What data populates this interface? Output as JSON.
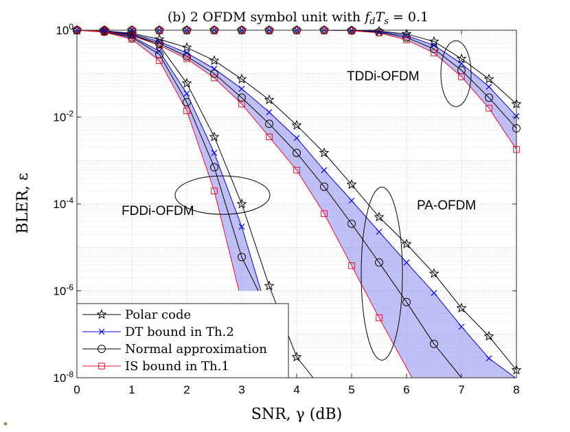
{
  "chart_data": {
    "type": "line",
    "title": "(b) 2 OFDM symbol unit with f_dT_s = 0.1",
    "title_parts": [
      "(b) 2 OFDM symbol unit with ",
      "f",
      "d",
      "T",
      "s",
      " = 0.1"
    ],
    "xlabel": "SNR, γ (dB)",
    "ylabel": "BLER, ε",
    "xlim": [
      0,
      8
    ],
    "ylim": [
      1e-08,
      1
    ],
    "yscale": "log",
    "grid": true,
    "minor_grid": true,
    "x_ticks": [
      0,
      1,
      2,
      3,
      4,
      5,
      6,
      7,
      8
    ],
    "x_tick_labels": [
      "0",
      "1",
      "2",
      "3",
      "4",
      "5",
      "6",
      "7",
      "8"
    ],
    "y_ticks": [
      1,
      0.01,
      0.0001,
      1e-06,
      1e-08
    ],
    "y_tick_labels": [
      {
        "base": "10",
        "exp": "0"
      },
      {
        "base": "10",
        "exp": "-2"
      },
      {
        "base": "10",
        "exp": "-4"
      },
      {
        "base": "10",
        "exp": "-6"
      },
      {
        "base": "10",
        "exp": "-8"
      }
    ],
    "legend": {
      "placement": "bottom-left",
      "entries": [
        {
          "label": "Polar code",
          "color": "#000000",
          "marker": "star"
        },
        {
          "label": "DT bound in Th.2",
          "color": "#0000e6",
          "marker": "x"
        },
        {
          "label": "Normal approximation",
          "color": "#000000",
          "marker": "circle"
        },
        {
          "label": "IS bound in Th.1",
          "color": "#e0102a",
          "marker": "square"
        }
      ]
    },
    "shade_color": "#8c8cf0",
    "annotations": [
      "FDDi-OFDM",
      "PA-OFDM",
      "TDDi-OFDM"
    ],
    "groups": [
      {
        "name": "FDDi-OFDM",
        "series": [
          {
            "name": "Polar code",
            "x": [
              0,
              0.5,
              1,
              1.5,
              2,
              2.5,
              3,
              3.5,
              4,
              4.3
            ],
            "y": [
              1,
              0.95,
              0.8,
              0.45,
              0.06,
              0.0035,
              0.0001,
              1.3e-06,
              3e-08,
              1e-08
            ]
          },
          {
            "name": "DT bound in Th.2",
            "x": [
              0,
              0.5,
              1,
              1.5,
              2,
              2.5,
              3,
              3.35
            ],
            "y": [
              1,
              0.93,
              0.72,
              0.33,
              0.035,
              0.0015,
              3e-05,
              1e-06
            ]
          },
          {
            "name": "Normal approximation",
            "x": [
              0,
              0.5,
              1,
              1.5,
              2,
              2.5,
              3,
              3.3
            ],
            "y": [
              1,
              0.92,
              0.68,
              0.28,
              0.022,
              0.0007,
              6e-06,
              1e-06
            ]
          },
          {
            "name": "IS bound in Th.1",
            "x": [
              0,
              0.5,
              1,
              1.5,
              2,
              2.5,
              2.95
            ],
            "y": [
              1,
              0.9,
              0.62,
              0.2,
              0.014,
              0.0002,
              1e-06
            ]
          }
        ]
      },
      {
        "name": "PA-OFDM",
        "series": [
          {
            "name": "Polar code",
            "x": [
              0,
              0.5,
              1,
              1.5,
              2,
              2.5,
              3,
              3.5,
              4,
              4.5,
              5,
              5.5,
              6,
              6.5,
              7,
              7.5,
              8
            ],
            "y": [
              1,
              0.97,
              0.85,
              0.62,
              0.4,
              0.2,
              0.075,
              0.025,
              0.0065,
              0.0015,
              0.00028,
              5e-05,
              1.2e-05,
              2.5e-06,
              4e-07,
              9e-08,
              1.5e-08
            ]
          },
          {
            "name": "DT bound in Th.2",
            "x": [
              0,
              0.5,
              1,
              1.5,
              2,
              2.5,
              3,
              3.5,
              4,
              4.5,
              5,
              5.5,
              6,
              6.5,
              7,
              7.5,
              7.98
            ],
            "y": [
              1,
              0.96,
              0.82,
              0.55,
              0.3,
              0.13,
              0.045,
              0.013,
              0.0033,
              0.0006,
              0.00012,
              2.3e-05,
              4.5e-06,
              9e-07,
              1.5e-07,
              2.8e-08,
              6e-09
            ]
          },
          {
            "name": "Normal approximation",
            "x": [
              0,
              0.5,
              1,
              1.5,
              2,
              2.5,
              3,
              3.5,
              4,
              4.5,
              5,
              5.5,
              6,
              6.5,
              7
            ],
            "y": [
              1,
              0.95,
              0.78,
              0.5,
              0.25,
              0.1,
              0.028,
              0.007,
              0.0015,
              0.00025,
              3.5e-05,
              4.5e-06,
              5.5e-07,
              6e-08,
              6e-09
            ]
          },
          {
            "name": "IS bound in Th.1",
            "x": [
              0,
              0.5,
              1,
              1.5,
              2,
              2.5,
              3,
              3.5,
              4,
              4.5,
              5,
              5.5,
              6.1
            ],
            "y": [
              1,
              0.94,
              0.75,
              0.45,
              0.22,
              0.08,
              0.02,
              0.0035,
              0.0006,
              6e-05,
              3.8e-06,
              2.4e-07,
              6e-09
            ]
          }
        ]
      },
      {
        "name": "TDDi-OFDM",
        "series": [
          {
            "name": "Polar code",
            "x": [
              0,
              0.5,
              1,
              1.5,
              2,
              2.5,
              3,
              3.5,
              4,
              4.5,
              5,
              5.5,
              6,
              6.5,
              7,
              7.5,
              8
            ],
            "y": [
              1,
              1,
              1,
              1,
              1,
              1,
              1,
              1,
              1,
              1,
              0.99,
              0.95,
              0.82,
              0.55,
              0.22,
              0.075,
              0.02
            ]
          },
          {
            "name": "DT bound in Th.2",
            "x": [
              0,
              0.5,
              1,
              1.5,
              2,
              2.5,
              3,
              3.5,
              4,
              4.5,
              5,
              5.5,
              6,
              6.5,
              7,
              7.5,
              8
            ],
            "y": [
              1,
              1,
              1,
              1,
              1,
              1,
              1,
              1,
              1,
              1,
              0.985,
              0.93,
              0.75,
              0.45,
              0.17,
              0.05,
              0.0105
            ]
          },
          {
            "name": "Normal approximation",
            "x": [
              0,
              0.5,
              1,
              1.5,
              2,
              2.5,
              3,
              3.5,
              4,
              4.5,
              5,
              5.5,
              6,
              6.5,
              7,
              7.5,
              8
            ],
            "y": [
              1,
              1,
              1,
              1,
              1,
              1,
              1,
              1,
              1,
              1,
              0.98,
              0.9,
              0.68,
              0.37,
              0.12,
              0.028,
              0.0055
            ]
          },
          {
            "name": "IS bound in Th.1",
            "x": [
              0,
              0.5,
              1,
              1.5,
              2,
              2.5,
              3,
              3.5,
              4,
              4.5,
              5,
              5.5,
              6,
              6.5,
              7,
              7.5,
              8
            ],
            "y": [
              1,
              1,
              1,
              1,
              1,
              1,
              1,
              1,
              1,
              1,
              0.975,
              0.87,
              0.6,
              0.3,
              0.085,
              0.016,
              0.0018
            ]
          }
        ]
      }
    ]
  }
}
